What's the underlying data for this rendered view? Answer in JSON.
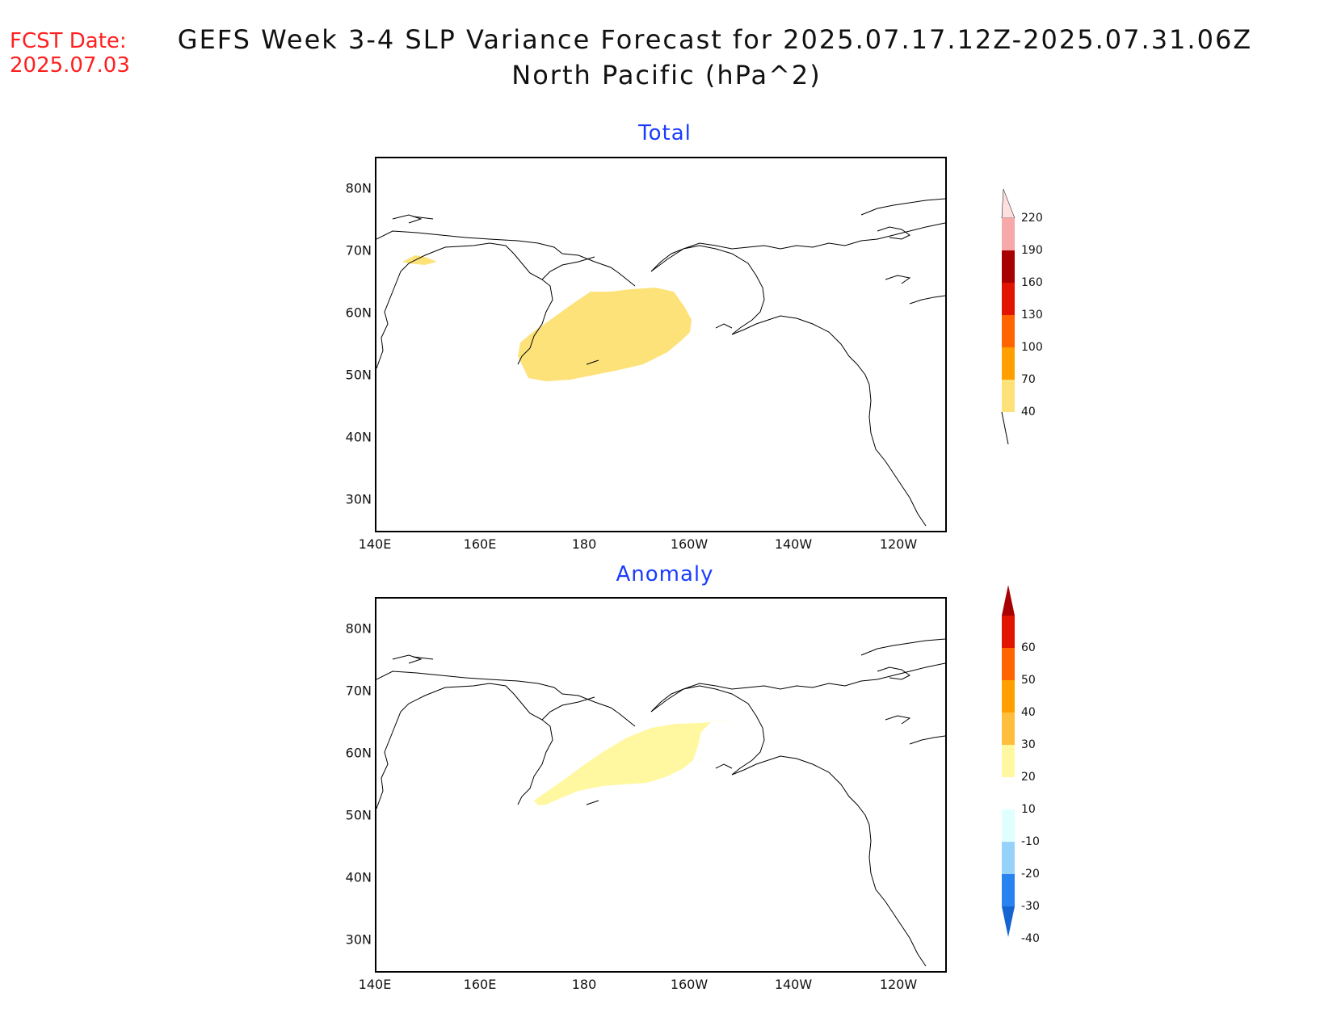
{
  "header": {
    "fcst_label": "FCST Date:",
    "fcst_date": "2025.07.03",
    "title_line1": "GEFS Week 3-4 SLP Variance Forecast for 2025.07.17.12Z-2025.07.31.06Z",
    "title_line2": "North Pacific (hPa^2)"
  },
  "axes": {
    "lat_labels": [
      "80N",
      "70N",
      "60N",
      "50N",
      "40N",
      "30N"
    ],
    "lon_labels": [
      "140E",
      "160E",
      "180",
      "160W",
      "140W",
      "120W"
    ]
  },
  "panels": [
    {
      "title": "Total",
      "colorbar": {
        "levels": [
          "220",
          "190",
          "160",
          "130",
          "100",
          "70",
          "40"
        ],
        "colors": [
          "#f7a8a8",
          "#a80000",
          "#e01400",
          "#ff6400",
          "#ffa000",
          "#fde27a"
        ]
      },
      "shaded_region": {
        "value_range": "40-70",
        "color": "#fde27a",
        "location": "Bering Sea / Aleutians"
      }
    },
    {
      "title": "Anomaly",
      "colorbar": {
        "levels": [
          "60",
          "50",
          "40",
          "30",
          "20",
          "10",
          "-10",
          "-20",
          "-30",
          "-40"
        ],
        "colors": [
          "#a80000",
          "#e01400",
          "#ff6400",
          "#ffa000",
          "#ffbe3c",
          "#fff8a0",
          "#ffffff",
          "#e0ffff",
          "#96d2fa",
          "#2882f0",
          "#1464d2"
        ]
      },
      "shaded_region": {
        "value_range": "10-20",
        "color": "#fff8a0",
        "location": "Bering Sea / Aleutians"
      }
    }
  ]
}
